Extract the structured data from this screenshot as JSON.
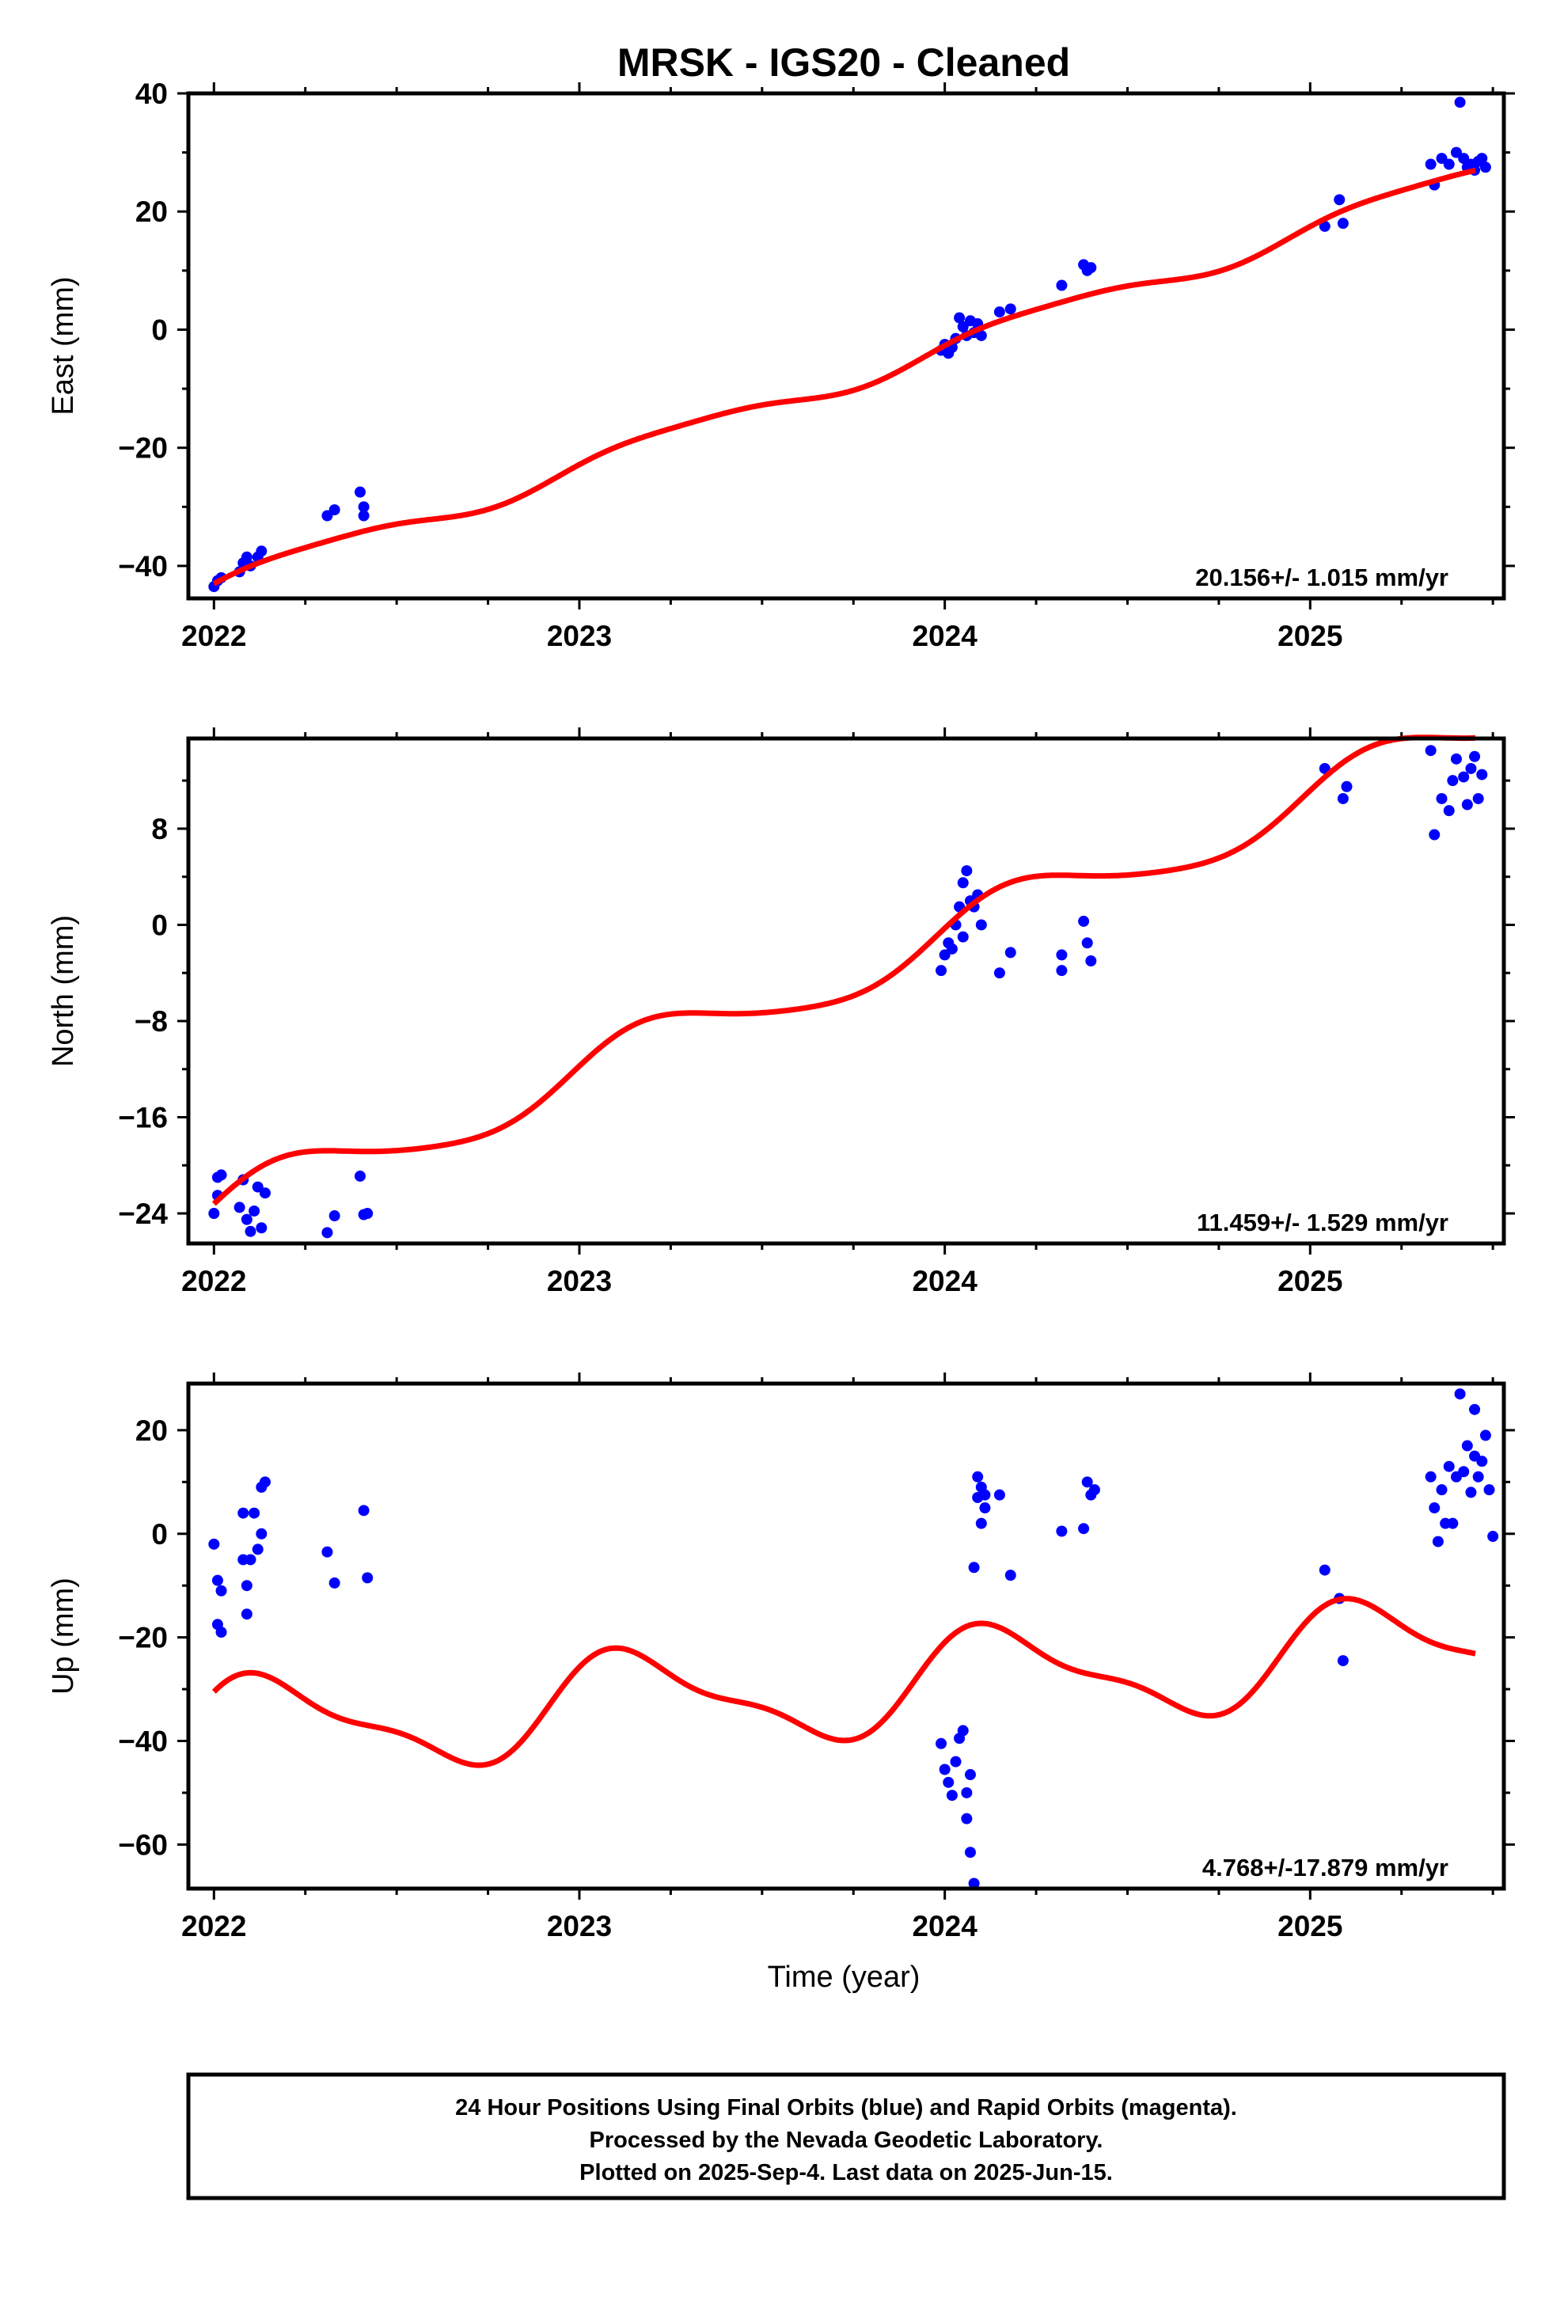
{
  "title": "MRSK  - IGS20 - Cleaned",
  "xlabel": "Time (year)",
  "colors": {
    "final_orbits": "#0000ff",
    "model_fit": "#ff0000"
  },
  "chart_data": [
    {
      "type": "scatter",
      "name": "east",
      "ylabel": "East (mm)",
      "rate_label": "20.156+/- 1.015 mm/yr",
      "xlim": [
        2021.93,
        2025.53
      ],
      "ylim": [
        -45.5,
        40
      ],
      "xticks": [
        2022,
        2023,
        2024,
        2025
      ],
      "yticks": [
        -40,
        -20,
        0,
        20,
        40
      ],
      "points": [
        [
          2022.0,
          -43.5
        ],
        [
          2022.01,
          -42.5
        ],
        [
          2022.02,
          -42.0
        ],
        [
          2022.07,
          -41.0
        ],
        [
          2022.08,
          -39.5
        ],
        [
          2022.09,
          -38.5
        ],
        [
          2022.1,
          -40.0
        ],
        [
          2022.12,
          -38.5
        ],
        [
          2022.13,
          -37.5
        ],
        [
          2022.31,
          -31.5
        ],
        [
          2022.33,
          -30.5
        ],
        [
          2022.4,
          -27.5
        ],
        [
          2022.41,
          -30.0
        ],
        [
          2022.41,
          -31.5
        ],
        [
          2023.99,
          -3.5
        ],
        [
          2024.0,
          -2.5
        ],
        [
          2024.01,
          -4.0
        ],
        [
          2024.02,
          -3.0
        ],
        [
          2024.03,
          -1.5
        ],
        [
          2024.04,
          2.0
        ],
        [
          2024.05,
          0.5
        ],
        [
          2024.06,
          -1.0
        ],
        [
          2024.07,
          1.5
        ],
        [
          2024.08,
          -0.5
        ],
        [
          2024.09,
          1.0
        ],
        [
          2024.1,
          -1.0
        ],
        [
          2024.15,
          3.0
        ],
        [
          2024.18,
          3.5
        ],
        [
          2024.32,
          7.5
        ],
        [
          2024.38,
          11.0
        ],
        [
          2024.39,
          10.0
        ],
        [
          2024.4,
          10.5
        ],
        [
          2025.04,
          17.5
        ],
        [
          2025.08,
          22.0
        ],
        [
          2025.09,
          18.0
        ],
        [
          2025.33,
          28.0
        ],
        [
          2025.34,
          24.5
        ],
        [
          2025.36,
          29.0
        ],
        [
          2025.38,
          28.0
        ],
        [
          2025.4,
          30.0
        ],
        [
          2025.41,
          38.5
        ],
        [
          2025.42,
          29.0
        ],
        [
          2025.43,
          27.5
        ],
        [
          2025.44,
          28.0
        ],
        [
          2025.45,
          27.0
        ],
        [
          2025.46,
          28.5
        ],
        [
          2025.47,
          29.0
        ],
        [
          2025.48,
          27.5
        ]
      ],
      "model": {
        "rate": 20.156,
        "y2022": -43.0,
        "amp1": 1.8,
        "phi1": 0,
        "amp2": 0.4,
        "phi2": 1.2
      }
    },
    {
      "type": "scatter",
      "name": "north",
      "ylabel": "North (mm)",
      "rate_label": "11.459+/- 1.529 mm/yr",
      "xlim": [
        2021.93,
        2025.53
      ],
      "ylim": [
        -26.5,
        15.5
      ],
      "xticks": [
        2022,
        2023,
        2024,
        2025
      ],
      "yticks": [
        -24,
        -16,
        -8,
        0,
        8
      ],
      "points": [
        [
          2022.0,
          -24.0
        ],
        [
          2022.01,
          -22.5
        ],
        [
          2022.01,
          -21.0
        ],
        [
          2022.02,
          -20.8
        ],
        [
          2022.07,
          -23.5
        ],
        [
          2022.08,
          -21.2
        ],
        [
          2022.09,
          -24.5
        ],
        [
          2022.1,
          -25.5
        ],
        [
          2022.11,
          -23.8
        ],
        [
          2022.12,
          -21.8
        ],
        [
          2022.13,
          -25.2
        ],
        [
          2022.14,
          -22.3
        ],
        [
          2022.31,
          -25.6
        ],
        [
          2022.33,
          -24.2
        ],
        [
          2022.4,
          -20.9
        ],
        [
          2022.41,
          -24.1
        ],
        [
          2022.42,
          -24.0
        ],
        [
          2023.99,
          -3.8
        ],
        [
          2024.0,
          -2.5
        ],
        [
          2024.01,
          -1.5
        ],
        [
          2024.02,
          -2.0
        ],
        [
          2024.03,
          0.0
        ],
        [
          2024.04,
          1.5
        ],
        [
          2024.05,
          -1.0
        ],
        [
          2024.05,
          3.5
        ],
        [
          2024.06,
          4.5
        ],
        [
          2024.07,
          2.0
        ],
        [
          2024.08,
          1.5
        ],
        [
          2024.09,
          2.5
        ],
        [
          2024.1,
          0.0
        ],
        [
          2024.15,
          -4.0
        ],
        [
          2024.18,
          -2.3
        ],
        [
          2024.32,
          -3.8
        ],
        [
          2024.32,
          -2.5
        ],
        [
          2024.38,
          0.3
        ],
        [
          2024.39,
          -1.5
        ],
        [
          2024.4,
          -3.0
        ],
        [
          2025.04,
          13.0
        ],
        [
          2025.09,
          10.5
        ],
        [
          2025.1,
          11.5
        ],
        [
          2025.33,
          14.5
        ],
        [
          2025.34,
          7.5
        ],
        [
          2025.36,
          10.5
        ],
        [
          2025.38,
          9.5
        ],
        [
          2025.39,
          12.0
        ],
        [
          2025.4,
          13.8
        ],
        [
          2025.42,
          12.3
        ],
        [
          2025.43,
          10.0
        ],
        [
          2025.44,
          13.0
        ],
        [
          2025.45,
          14.0
        ],
        [
          2025.46,
          10.5
        ],
        [
          2025.47,
          12.5
        ]
      ],
      "model": {
        "rate": 11.459,
        "y2022": -23.2,
        "amp1": 2.2,
        "phi1": 0.3,
        "amp2": 0.3,
        "phi2": 0
      }
    },
    {
      "type": "scatter",
      "name": "up",
      "ylabel": "Up (mm)",
      "rate_label": "4.768+/-17.879 mm/yr",
      "xlim": [
        2021.93,
        2025.53
      ],
      "ylim": [
        -68.5,
        29
      ],
      "xticks": [
        2022,
        2023,
        2024,
        2025
      ],
      "yticks": [
        -60,
        -40,
        -20,
        0,
        20
      ],
      "points": [
        [
          2022.0,
          -2.0
        ],
        [
          2022.01,
          -9.0
        ],
        [
          2022.01,
          -17.5
        ],
        [
          2022.02,
          -11.0
        ],
        [
          2022.02,
          -19.0
        ],
        [
          2022.08,
          4.0
        ],
        [
          2022.08,
          -5.0
        ],
        [
          2022.09,
          -10.0
        ],
        [
          2022.09,
          -15.5
        ],
        [
          2022.1,
          -5.0
        ],
        [
          2022.11,
          4.0
        ],
        [
          2022.12,
          -3.0
        ],
        [
          2022.13,
          0.0
        ],
        [
          2022.13,
          9.0
        ],
        [
          2022.14,
          10.0
        ],
        [
          2022.31,
          -3.5
        ],
        [
          2022.33,
          -9.5
        ],
        [
          2022.41,
          4.5
        ],
        [
          2022.42,
          -8.5
        ],
        [
          2023.99,
          -40.5
        ],
        [
          2024.0,
          -45.5
        ],
        [
          2024.01,
          -48.0
        ],
        [
          2024.02,
          -50.5
        ],
        [
          2024.03,
          -44.0
        ],
        [
          2024.04,
          -39.5
        ],
        [
          2024.05,
          -38.0
        ],
        [
          2024.06,
          -50.0
        ],
        [
          2024.06,
          -55.0
        ],
        [
          2024.07,
          -46.5
        ],
        [
          2024.07,
          -61.5
        ],
        [
          2024.08,
          -67.5
        ],
        [
          2024.08,
          -6.5
        ],
        [
          2024.09,
          11.0
        ],
        [
          2024.09,
          7.0
        ],
        [
          2024.1,
          9.0
        ],
        [
          2024.1,
          2.0
        ],
        [
          2024.11,
          5.0
        ],
        [
          2024.11,
          7.5
        ],
        [
          2024.15,
          7.5
        ],
        [
          2024.18,
          -8.0
        ],
        [
          2024.32,
          0.5
        ],
        [
          2024.38,
          1.0
        ],
        [
          2024.39,
          10.0
        ],
        [
          2024.4,
          7.5
        ],
        [
          2024.41,
          8.5
        ],
        [
          2025.04,
          -7.0
        ],
        [
          2025.08,
          -12.5
        ],
        [
          2025.09,
          -24.5
        ],
        [
          2025.33,
          11.0
        ],
        [
          2025.34,
          5.0
        ],
        [
          2025.35,
          -1.5
        ],
        [
          2025.36,
          8.5
        ],
        [
          2025.37,
          2.0
        ],
        [
          2025.38,
          13.0
        ],
        [
          2025.39,
          2.0
        ],
        [
          2025.4,
          11.0
        ],
        [
          2025.41,
          27.0
        ],
        [
          2025.42,
          12.0
        ],
        [
          2025.43,
          17.0
        ],
        [
          2025.44,
          8.0
        ],
        [
          2025.45,
          15.0
        ],
        [
          2025.45,
          24.0
        ],
        [
          2025.46,
          11.0
        ],
        [
          2025.47,
          14.0
        ],
        [
          2025.48,
          19.0
        ],
        [
          2025.49,
          8.5
        ],
        [
          2025.5,
          -0.5
        ]
      ],
      "model": {
        "rate": 4.768,
        "y2022": -30.5,
        "amp1": 9.0,
        "phi1": 0.6,
        "amp2": 3.0,
        "phi2": 1.0
      }
    }
  ],
  "footer": {
    "line1": "24 Hour Positions Using Final Orbits (blue) and Rapid Orbits (magenta).",
    "line2": "Processed by the Nevada Geodetic Laboratory.",
    "line3": "Plotted on 2025-Sep-4. Last data on 2025-Jun-15."
  }
}
